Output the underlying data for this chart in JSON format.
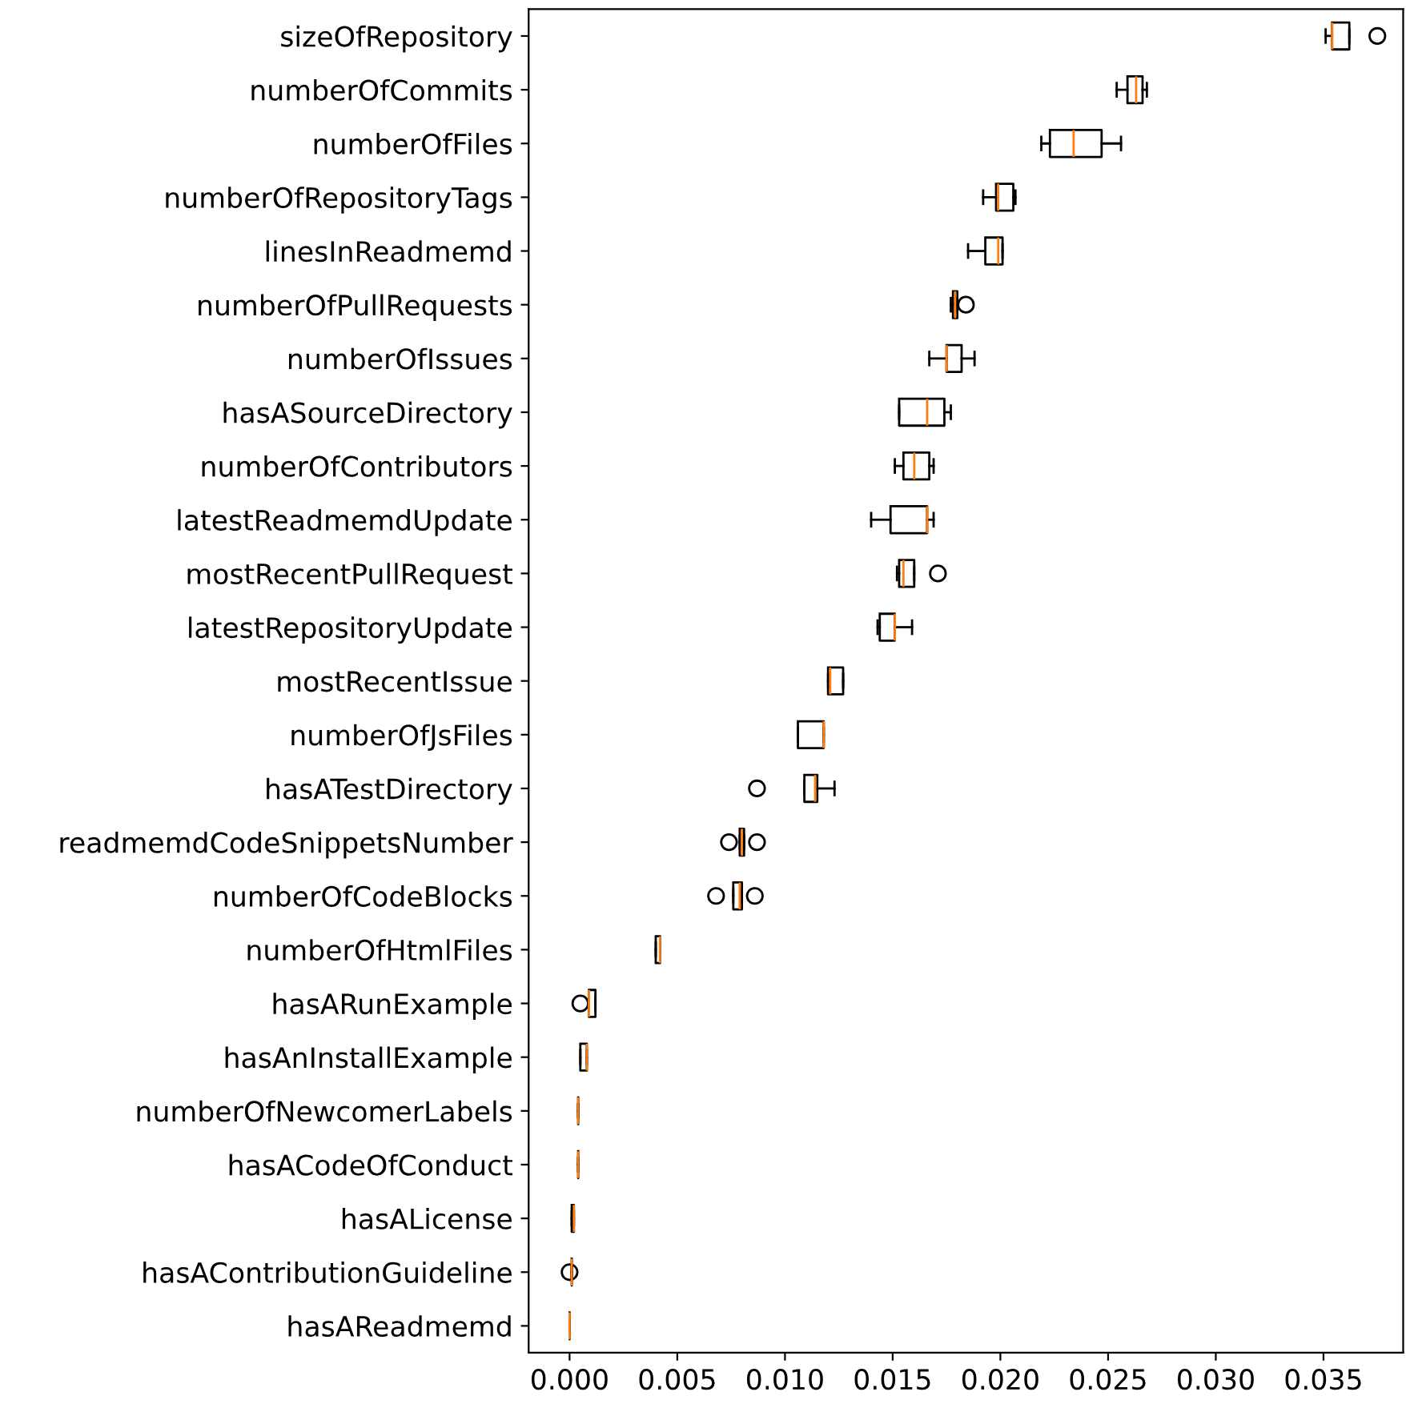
{
  "chart_data": {
    "type": "box",
    "orientation": "horizontal",
    "grid": false,
    "marker": "circle",
    "categories": [
      "sizeOfRepository",
      "numberOfCommits",
      "numberOfFiles",
      "numberOfRepositoryTags",
      "linesInReadmemd",
      "numberOfPullRequests",
      "numberOfIssues",
      "hasASourceDirectory",
      "numberOfContributors",
      "latestReadmemdUpdate",
      "mostRecentPullRequest",
      "latestRepositoryUpdate",
      "mostRecentIssue",
      "numberOfJsFiles",
      "hasATestDirectory",
      "readmemdCodeSnippetsNumber",
      "numberOfCodeBlocks",
      "numberOfHtmlFiles",
      "hasARunExample",
      "hasAnInstallExample",
      "numberOfNewcomerLabels",
      "hasACodeOfConduct",
      "hasALicense",
      "hasAContributionGuideline",
      "hasAReadmemd"
    ],
    "boxes": [
      {
        "low": 0.0351,
        "q1": 0.0354,
        "median": 0.0354,
        "q3": 0.0362,
        "high": 0.0362,
        "outliers": [
          0.0375
        ]
      },
      {
        "low": 0.0254,
        "q1": 0.0259,
        "median": 0.0263,
        "q3": 0.0266,
        "high": 0.0268
      },
      {
        "low": 0.0219,
        "q1": 0.0223,
        "median": 0.0234,
        "q3": 0.0247,
        "high": 0.0256
      },
      {
        "low": 0.0192,
        "q1": 0.0198,
        "median": 0.0199,
        "q3": 0.0206,
        "high": 0.0207
      },
      {
        "low": 0.0185,
        "q1": 0.0193,
        "median": 0.0199,
        "q3": 0.0201,
        "high": 0.0201
      },
      {
        "low": 0.0177,
        "q1": 0.0178,
        "median": 0.0179,
        "q3": 0.018,
        "high": 0.018,
        "outliers": [
          0.0184
        ]
      },
      {
        "low": 0.0167,
        "q1": 0.0175,
        "median": 0.0175,
        "q3": 0.0182,
        "high": 0.0188
      },
      {
        "low": 0.0153,
        "q1": 0.0153,
        "median": 0.0166,
        "q3": 0.0174,
        "high": 0.0177
      },
      {
        "low": 0.0151,
        "q1": 0.0155,
        "median": 0.016,
        "q3": 0.0167,
        "high": 0.0169
      },
      {
        "low": 0.014,
        "q1": 0.0149,
        "median": 0.0166,
        "q3": 0.0166,
        "high": 0.0169
      },
      {
        "low": 0.0152,
        "q1": 0.0153,
        "median": 0.0155,
        "q3": 0.016,
        "high": 0.016,
        "outliers": [
          0.0171
        ]
      },
      {
        "low": 0.0143,
        "q1": 0.0144,
        "median": 0.0151,
        "q3": 0.0151,
        "high": 0.0159
      },
      {
        "low": 0.012,
        "q1": 0.012,
        "median": 0.0121,
        "q3": 0.0127,
        "high": 0.0127
      },
      {
        "low": 0.0106,
        "q1": 0.0106,
        "median": 0.0118,
        "q3": 0.0118,
        "high": 0.0118
      },
      {
        "low": 0.0109,
        "q1": 0.0109,
        "median": 0.0114,
        "q3": 0.0115,
        "high": 0.0123,
        "outliers": [
          0.0087
        ]
      },
      {
        "low": 0.0079,
        "q1": 0.0079,
        "median": 0.008,
        "q3": 0.0081,
        "high": 0.0081,
        "outliers": [
          0.0074,
          0.0087
        ]
      },
      {
        "low": 0.0076,
        "q1": 0.0076,
        "median": 0.0079,
        "q3": 0.008,
        "high": 0.008,
        "outliers": [
          0.0068,
          0.0086
        ]
      },
      {
        "low": 0.004,
        "q1": 0.004,
        "median": 0.0042,
        "q3": 0.0042,
        "high": 0.0042
      },
      {
        "low": 0.0009,
        "q1": 0.0009,
        "median": 0.0009,
        "q3": 0.0012,
        "high": 0.0012,
        "outliers": [
          0.0005
        ]
      },
      {
        "low": 0.0005,
        "q1": 0.0005,
        "median": 0.0008,
        "q3": 0.0008,
        "high": 0.0008
      },
      {
        "low": 0.0004,
        "q1": 0.0004,
        "median": 0.0004,
        "q3": 0.0004,
        "high": 0.0004
      },
      {
        "low": 0.0004,
        "q1": 0.0004,
        "median": 0.0004,
        "q3": 0.0004,
        "high": 0.0004
      },
      {
        "low": 0.0001,
        "q1": 0.0001,
        "median": 0.0002,
        "q3": 0.0002,
        "high": 0.0002
      },
      {
        "low": 0.0001,
        "q1": 0.0001,
        "median": 0.0001,
        "q3": 0.0001,
        "high": 0.0001,
        "outliers": [
          0.0
        ]
      },
      {
        "low": 0.0,
        "q1": 0.0,
        "median": 0.0,
        "q3": 0.0,
        "high": 0.0
      }
    ],
    "xlim": [
      -0.0019,
      0.0387
    ],
    "xticks": [
      {
        "value": 0,
        "label": "0.000"
      },
      {
        "value": 0.005,
        "label": "0.005"
      },
      {
        "value": 0.01,
        "label": "0.010"
      },
      {
        "value": 0.015,
        "label": "0.015"
      },
      {
        "value": 0.02,
        "label": "0.020"
      },
      {
        "value": 0.025,
        "label": "0.025"
      },
      {
        "value": 0.03,
        "label": "0.030"
      },
      {
        "value": 0.035,
        "label": "0.035"
      }
    ]
  }
}
